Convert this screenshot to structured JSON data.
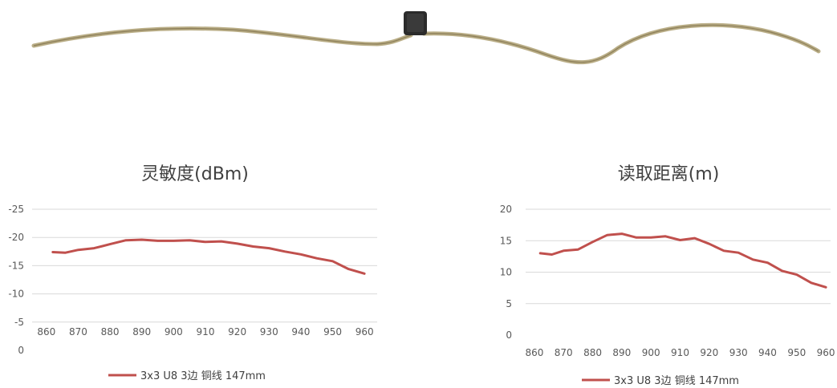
{
  "product_image": {
    "description_icon": "rfid-wire-antenna-tag"
  },
  "chart_data": [
    {
      "type": "line",
      "title": "灵敏度(dBm)",
      "x": [
        862,
        866,
        870,
        875,
        880,
        885,
        890,
        895,
        900,
        905,
        910,
        915,
        920,
        925,
        930,
        935,
        940,
        945,
        950,
        955,
        960
      ],
      "ylim": [
        0,
        -25
      ],
      "yticks": [
        -25,
        -20,
        -15,
        -10,
        -5,
        0
      ],
      "ytick_labels": [
        "-25",
        "-20",
        "-15",
        "-10",
        "-5",
        "0"
      ],
      "xticks": [
        860,
        870,
        880,
        890,
        900,
        910,
        920,
        930,
        940,
        950,
        960
      ],
      "grid": true,
      "legend_position": "bottom",
      "series": [
        {
          "name": "3x3 U8 3边 铜线 147mm",
          "color": "#c0504d",
          "values": [
            -17.4,
            -17.3,
            -17.8,
            -18.1,
            -18.8,
            -19.5,
            -19.6,
            -19.4,
            -19.4,
            -19.5,
            -19.2,
            -19.3,
            -18.9,
            -18.4,
            -18.1,
            -17.5,
            -17.0,
            -16.3,
            -15.8,
            -14.4,
            -13.6
          ]
        }
      ]
    },
    {
      "type": "line",
      "title": "读取距离(m)",
      "x": [
        862,
        866,
        870,
        875,
        880,
        885,
        890,
        895,
        900,
        905,
        910,
        915,
        920,
        925,
        930,
        935,
        940,
        945,
        950,
        955,
        960
      ],
      "ylim": [
        0,
        20
      ],
      "yticks": [
        0,
        5,
        10,
        15,
        20
      ],
      "ytick_labels": [
        "0",
        "5",
        "10",
        "15",
        "20"
      ],
      "xticks": [
        860,
        870,
        880,
        890,
        900,
        910,
        920,
        930,
        940,
        950,
        960
      ],
      "grid": true,
      "legend_position": "bottom",
      "series": [
        {
          "name": "3x3 U8 3边 铜线 147mm",
          "color": "#c0504d",
          "values": [
            13.0,
            12.8,
            13.4,
            13.6,
            14.8,
            15.9,
            16.1,
            15.5,
            15.5,
            15.7,
            15.1,
            15.4,
            14.5,
            13.4,
            13.1,
            12.0,
            11.5,
            10.2,
            9.6,
            8.3,
            7.6
          ]
        }
      ]
    }
  ]
}
